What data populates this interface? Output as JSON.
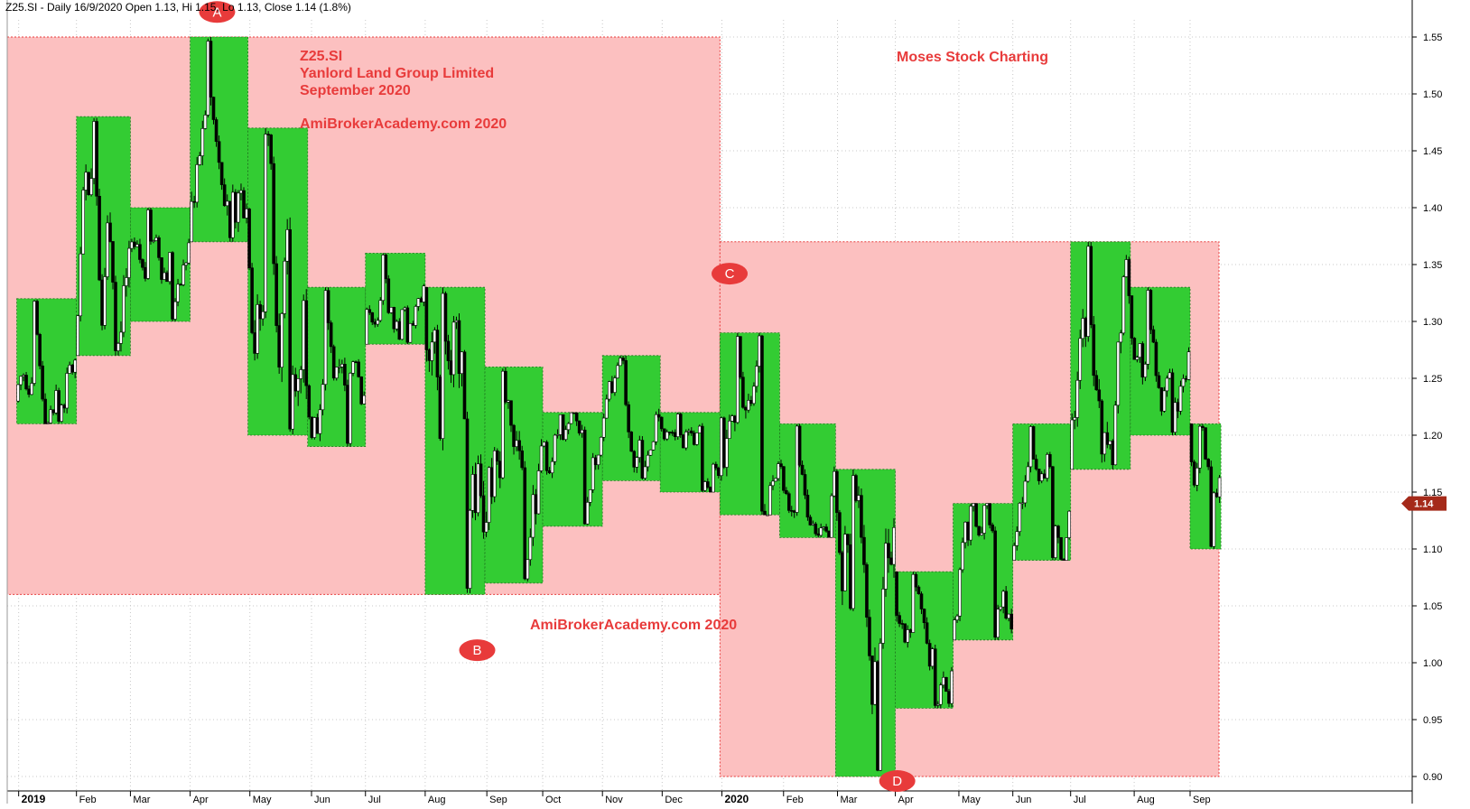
{
  "header": {
    "ticker_line": "Z25.SI - Daily 16/9/2020 Open 1.13, Hi 1.15, Lo 1.13, Close 1.14 (1.8%)"
  },
  "annotations": {
    "ticker": "Z25.SI",
    "company": "Yanlord Land Group Limited",
    "period": "September 2020",
    "site_top": "AmiBrokerAcademy.com  2020",
    "site_bottom": "AmiBrokerAcademy.com  2020",
    "brand": "Moses Stock Charting"
  },
  "colors": {
    "pink_zone": "#fcc0c0",
    "pink_border": "#e83b3b",
    "green_box": "#33cc33",
    "marker": "#e83b3b",
    "annotation_text": "#e83b3b",
    "last_price_tag": "#a52a1a",
    "grid": "#c8c8c8"
  },
  "chart_data": {
    "type": "candlestick",
    "ticker": "Z25.SI",
    "date_range": [
      "2018-12-28",
      "2020-09-16"
    ],
    "ylim": [
      0.89,
      1.57
    ],
    "y_ticks": [
      "0.90",
      "0.95",
      "1.00",
      "1.05",
      "1.10",
      "1.15",
      "1.20",
      "1.25",
      "1.30",
      "1.35",
      "1.40",
      "1.45",
      "1.50",
      "1.55"
    ],
    "x_ticks": [
      "2019",
      "Feb",
      "Mar",
      "Apr",
      "May",
      "Jun",
      "Jul",
      "Aug",
      "Sep",
      "Oct",
      "Nov",
      "Dec",
      "2020",
      "Feb",
      "Mar",
      "Apr",
      "May",
      "Jun",
      "Jul",
      "Aug",
      "Sep"
    ],
    "x_ticks_bold": [
      "2019",
      "2020"
    ],
    "last_close": "1.14",
    "last_ohlc": {
      "date": "16/9/2020",
      "open": 1.13,
      "high": 1.15,
      "low": 1.13,
      "close": 1.14,
      "change": "1.8%"
    },
    "yearly_ranges": [
      {
        "start": "2018-12-28",
        "end": "2019-12-31",
        "high": 1.55,
        "low": 1.06
      },
      {
        "start": "2020-01-01",
        "end": "2020-09-16",
        "high": 1.37,
        "low": 0.9
      }
    ],
    "monthly_ranges": [
      {
        "month": "2019-01",
        "high": 1.32,
        "low": 1.21
      },
      {
        "month": "2019-02",
        "high": 1.48,
        "low": 1.27
      },
      {
        "month": "2019-03",
        "high": 1.4,
        "low": 1.3
      },
      {
        "month": "2019-04",
        "high": 1.55,
        "low": 1.37
      },
      {
        "month": "2019-05",
        "high": 1.47,
        "low": 1.2
      },
      {
        "month": "2019-06",
        "high": 1.33,
        "low": 1.19
      },
      {
        "month": "2019-07",
        "high": 1.36,
        "low": 1.28
      },
      {
        "month": "2019-08",
        "high": 1.33,
        "low": 1.06
      },
      {
        "month": "2019-09",
        "high": 1.26,
        "low": 1.07
      },
      {
        "month": "2019-10",
        "high": 1.22,
        "low": 1.12
      },
      {
        "month": "2019-11",
        "high": 1.27,
        "low": 1.16
      },
      {
        "month": "2019-12",
        "high": 1.22,
        "low": 1.15
      },
      {
        "month": "2020-01",
        "high": 1.29,
        "low": 1.13
      },
      {
        "month": "2020-02",
        "high": 1.21,
        "low": 1.11
      },
      {
        "month": "2020-03",
        "high": 1.17,
        "low": 0.9
      },
      {
        "month": "2020-04",
        "high": 1.08,
        "low": 0.96
      },
      {
        "month": "2020-05",
        "high": 1.14,
        "low": 1.02
      },
      {
        "month": "2020-06",
        "high": 1.21,
        "low": 1.09
      },
      {
        "month": "2020-07",
        "high": 1.37,
        "low": 1.17
      },
      {
        "month": "2020-08",
        "high": 1.33,
        "low": 1.2
      },
      {
        "month": "2020-09",
        "high": 1.21,
        "low": 1.1
      }
    ],
    "markers": [
      {
        "label": "A",
        "date": "2019-04-15",
        "price": 1.572
      },
      {
        "label": "B",
        "date": "2019-08-28",
        "price": 1.011
      },
      {
        "label": "C",
        "date": "2020-01-06",
        "price": 1.342
      },
      {
        "label": "D",
        "date": "2020-04-02",
        "price": 0.896
      }
    ]
  }
}
